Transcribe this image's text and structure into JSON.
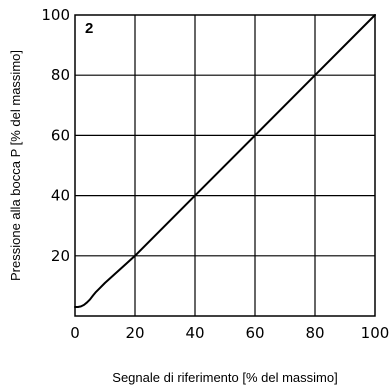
{
  "chart_data": {
    "type": "line",
    "panel_label": "2",
    "title": "",
    "xlabel": "Segnale di riferimento [% del massimo]",
    "ylabel": "Pressione alla bocca P [% del massimo]",
    "xlim": [
      0,
      100
    ],
    "ylim": [
      0,
      100
    ],
    "xticks": [
      0,
      20,
      40,
      60,
      80,
      100
    ],
    "yticks": [
      20,
      40,
      60,
      80,
      100
    ],
    "grid": true,
    "series": [
      {
        "x": [
          0,
          1,
          2,
          3,
          4,
          5,
          6,
          7,
          8,
          10,
          20,
          40,
          60,
          80,
          100
        ],
        "y": [
          3,
          3,
          3.2,
          3.7,
          4.5,
          5.5,
          6.8,
          8,
          9,
          11,
          20,
          40,
          60,
          80,
          100
        ]
      }
    ],
    "colors": {
      "line": "#000000",
      "grid": "#000000"
    }
  }
}
